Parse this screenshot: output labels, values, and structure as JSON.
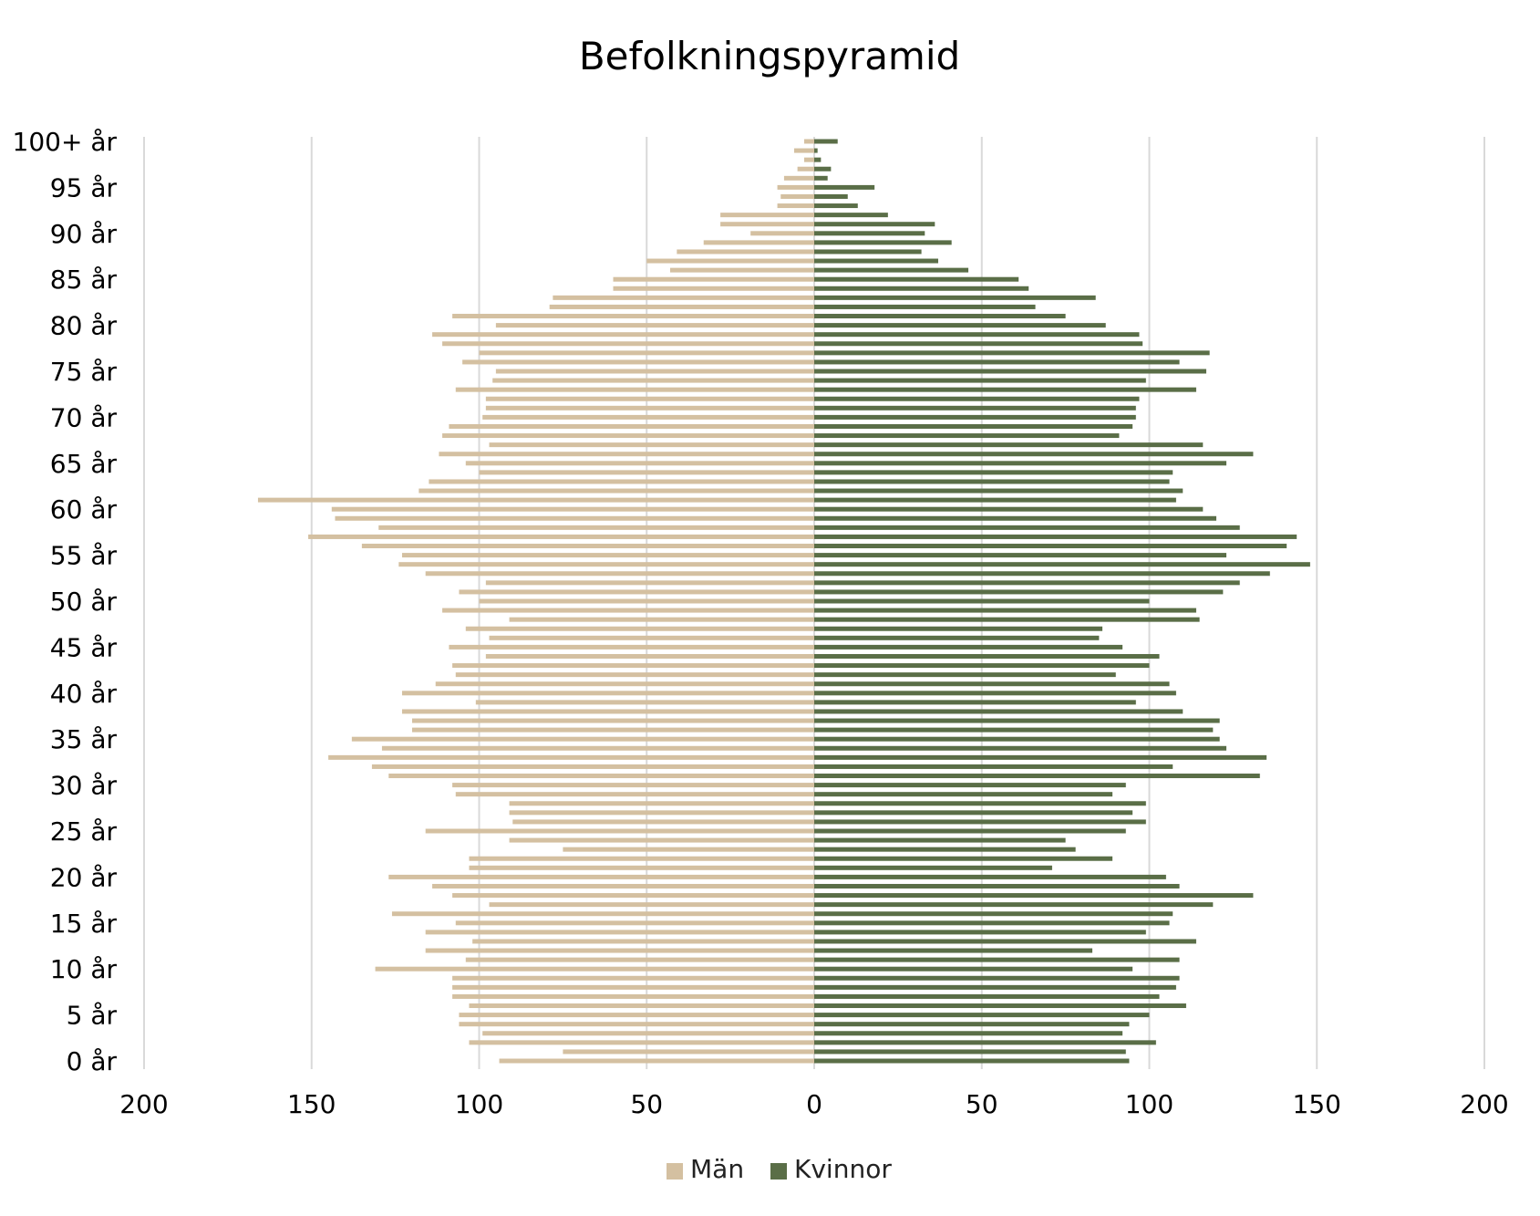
{
  "chart_data": {
    "type": "bar",
    "orientation": "horizontal",
    "layout": "population-pyramid",
    "title": "Befolkningspyramid",
    "xlim": [
      -200,
      200
    ],
    "x_ticks": [
      -200,
      -150,
      -100,
      -50,
      0,
      50,
      100,
      150,
      200
    ],
    "x_tick_labels": [
      "200",
      "150",
      "100",
      "50",
      "0",
      "50",
      "100",
      "150",
      "200"
    ],
    "grid": true,
    "legend_position": "bottom",
    "categories": [
      "0 år",
      "1 år",
      "2 år",
      "3 år",
      "4 år",
      "5 år",
      "6 år",
      "7 år",
      "8 år",
      "9 år",
      "10 år",
      "11 år",
      "12 år",
      "13 år",
      "14 år",
      "15 år",
      "16 år",
      "17 år",
      "18 år",
      "19 år",
      "20 år",
      "21 år",
      "22 år",
      "23 år",
      "24 år",
      "25 år",
      "26 år",
      "27 år",
      "28 år",
      "29 år",
      "30 år",
      "31 år",
      "32 år",
      "33 år",
      "34 år",
      "35 år",
      "36 år",
      "37 år",
      "38 år",
      "39 år",
      "40 år",
      "41 år",
      "42 år",
      "43 år",
      "44 år",
      "45 år",
      "46 år",
      "47 år",
      "48 år",
      "49 år",
      "50 år",
      "51 år",
      "52 år",
      "53 år",
      "54 år",
      "55 år",
      "56 år",
      "57 år",
      "58 år",
      "59 år",
      "60 år",
      "61 år",
      "62 år",
      "63 år",
      "64 år",
      "65 år",
      "66 år",
      "67 år",
      "68 år",
      "69 år",
      "70 år",
      "71 år",
      "72 år",
      "73 år",
      "74 år",
      "75 år",
      "76 år",
      "77 år",
      "78 år",
      "79 år",
      "80 år",
      "81 år",
      "82 år",
      "83 år",
      "84 år",
      "85 år",
      "86 år",
      "87 år",
      "88 år",
      "89 år",
      "90 år",
      "91 år",
      "92 år",
      "93 år",
      "94 år",
      "95 år",
      "96 år",
      "97 år",
      "98 år",
      "99 år",
      "100+ år"
    ],
    "y_tick_labels": [
      "0 år",
      "5 år",
      "10 år",
      "15 år",
      "20 år",
      "25 år",
      "30 år",
      "35 år",
      "40 år",
      "45 år",
      "50 år",
      "55 år",
      "60 år",
      "65 år",
      "70 år",
      "75 år",
      "80 år",
      "85 år",
      "90 år",
      "95 år",
      "100+ år"
    ],
    "series": [
      {
        "name": "Män",
        "color": "#d4c0a1",
        "side": "left",
        "values": [
          94,
          75,
          103,
          99,
          106,
          106,
          103,
          108,
          108,
          108,
          131,
          104,
          116,
          102,
          116,
          107,
          126,
          97,
          108,
          114,
          127,
          103,
          103,
          75,
          91,
          116,
          90,
          91,
          91,
          107,
          108,
          127,
          132,
          145,
          129,
          138,
          120,
          120,
          123,
          101,
          123,
          113,
          107,
          108,
          98,
          109,
          97,
          104,
          91,
          111,
          100,
          106,
          98,
          116,
          124,
          123,
          135,
          151,
          130,
          143,
          144,
          166,
          118,
          115,
          100,
          104,
          112,
          97,
          111,
          109,
          99,
          98,
          98,
          107,
          96,
          95,
          105,
          100,
          111,
          114,
          95,
          108,
          79,
          78,
          60,
          60,
          43,
          50,
          41,
          33,
          19,
          28,
          28,
          11,
          10,
          11,
          9,
          5,
          3,
          6,
          3
        ]
      },
      {
        "name": "Kvinnor",
        "color": "#5a6e47",
        "side": "right",
        "values": [
          94,
          93,
          102,
          92,
          94,
          100,
          111,
          103,
          108,
          109,
          95,
          109,
          83,
          114,
          99,
          106,
          107,
          119,
          131,
          109,
          105,
          71,
          89,
          78,
          75,
          93,
          99,
          95,
          99,
          89,
          93,
          133,
          107,
          135,
          123,
          121,
          119,
          121,
          110,
          96,
          108,
          106,
          90,
          100,
          103,
          92,
          85,
          86,
          115,
          114,
          100,
          122,
          127,
          136,
          148,
          123,
          141,
          144,
          127,
          120,
          116,
          108,
          110,
          106,
          107,
          123,
          131,
          116,
          91,
          95,
          96,
          96,
          97,
          114,
          99,
          117,
          109,
          118,
          98,
          97,
          87,
          75,
          66,
          84,
          64,
          61,
          46,
          37,
          32,
          41,
          33,
          36,
          22,
          13,
          10,
          18,
          4,
          5,
          2,
          1,
          7
        ]
      }
    ]
  }
}
